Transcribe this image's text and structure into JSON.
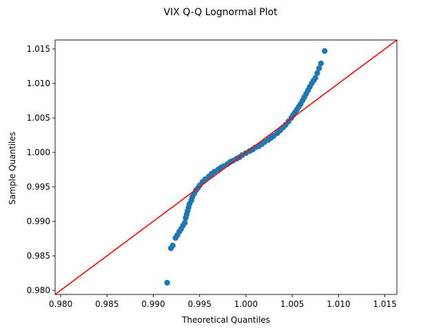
{
  "chart_data": {
    "type": "scatter",
    "title": "VIX Q-Q Lognormal Plot",
    "xlabel": "Theoretical Quantiles",
    "ylabel": "Sample Quantiles",
    "xlim": [
      0.9794,
      1.0163
    ],
    "ylim": [
      0.9794,
      1.0163
    ],
    "xticks": [
      "0.980",
      "0.985",
      "0.990",
      "0.995",
      "1.000",
      "1.005",
      "1.010",
      "1.015"
    ],
    "yticks": [
      "0.980",
      "0.985",
      "0.990",
      "0.995",
      "1.000",
      "1.005",
      "1.010",
      "1.015"
    ],
    "grid": false,
    "legend": false,
    "marker_color": "#1f77b4",
    "reference_line_color": "#ff0000",
    "reference_line": {
      "x": [
        0.9794,
        1.0163
      ],
      "y": [
        0.9794,
        1.0163
      ]
    },
    "points": {
      "x": [
        0.9915,
        0.9919,
        0.9921,
        0.9924,
        0.9926,
        0.9928,
        0.993,
        0.9932,
        0.9934,
        0.9935,
        0.9936,
        0.9937,
        0.9938,
        0.9939,
        0.9941,
        0.9942,
        0.9944,
        0.9946,
        0.9948,
        0.995,
        0.9953,
        0.9956,
        0.996,
        0.9963,
        0.9966,
        0.997,
        0.9973,
        0.9976,
        0.998,
        0.9983,
        0.9986,
        0.999,
        0.9993,
        0.9996,
        1.0,
        1.0004,
        1.0007,
        1.001,
        1.0014,
        1.0017,
        1.002,
        1.0024,
        1.0027,
        1.003,
        1.0034,
        1.0037,
        1.004,
        1.0043,
        1.0046,
        1.0049,
        1.0051,
        1.0053,
        1.0055,
        1.0057,
        1.0059,
        1.0061,
        1.0063,
        1.0065,
        1.0067,
        1.0069,
        1.0071,
        1.0073,
        1.0075,
        1.0077,
        1.0079,
        1.0081,
        1.0085
      ],
      "y": [
        0.9811,
        0.9861,
        0.9865,
        0.9876,
        0.988,
        0.9885,
        0.9889,
        0.9894,
        0.9898,
        0.9905,
        0.991,
        0.9915,
        0.992,
        0.9925,
        0.993,
        0.9935,
        0.994,
        0.9945,
        0.9948,
        0.9952,
        0.9957,
        0.9961,
        0.9965,
        0.9969,
        0.9972,
        0.9975,
        0.9978,
        0.998,
        0.9983,
        0.9986,
        0.9988,
        0.9991,
        0.9993,
        0.9996,
        0.9999,
        1.0002,
        1.0004,
        1.0007,
        1.0009,
        1.0012,
        1.0015,
        1.0018,
        1.0021,
        1.0024,
        1.0028,
        1.0032,
        1.0036,
        1.004,
        1.0045,
        1.005,
        1.0054,
        1.0058,
        1.0062,
        1.0066,
        1.007,
        1.0075,
        1.008,
        1.0085,
        1.009,
        1.0095,
        1.01,
        1.0104,
        1.0108,
        1.0115,
        1.0122,
        1.0129,
        1.0147
      ]
    }
  }
}
